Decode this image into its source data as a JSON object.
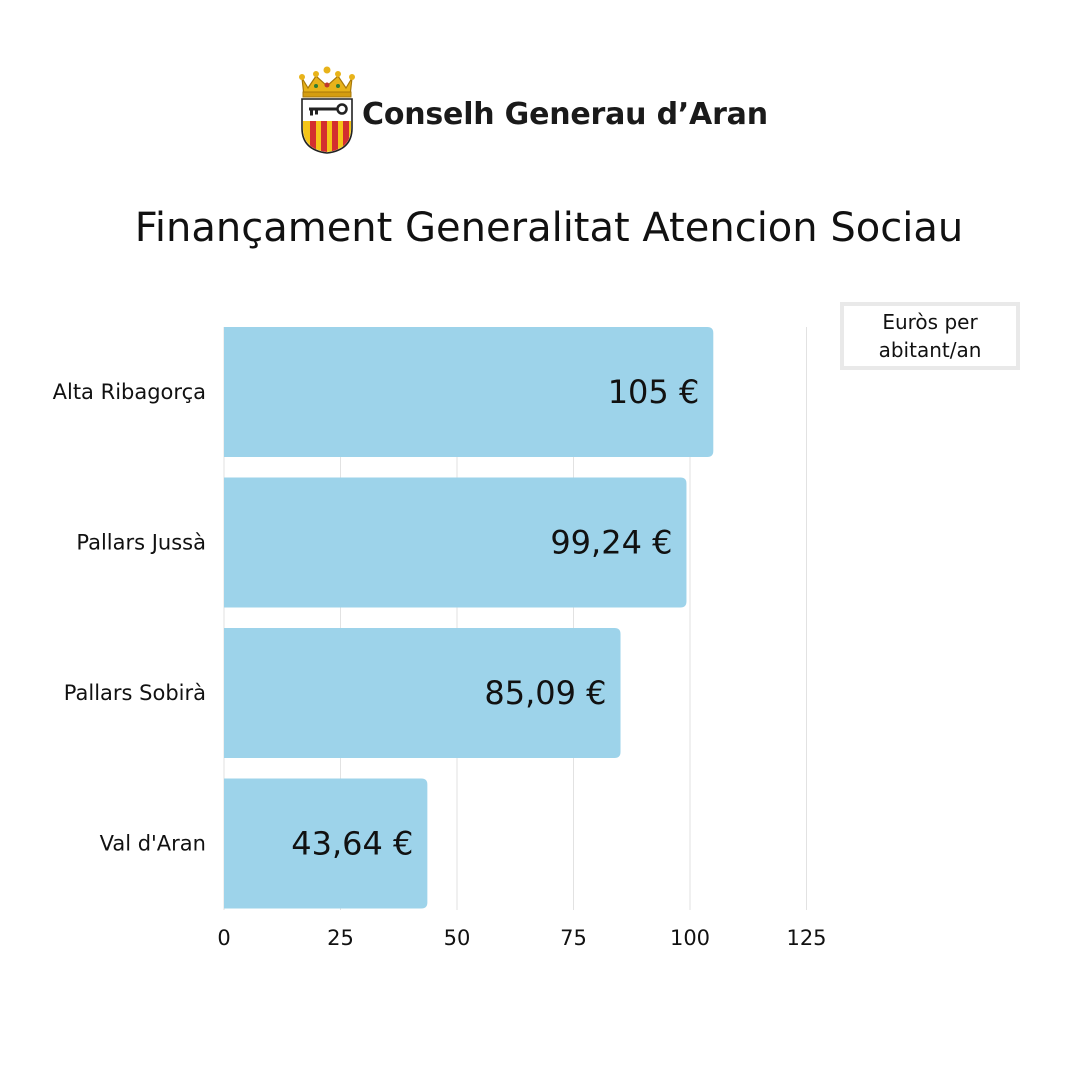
{
  "header": {
    "org_name": "Conselh Generau d’Aran",
    "logo_icon": "coat-of-arms-icon"
  },
  "legend": {
    "label": "Euròs per abitant/an"
  },
  "colors": {
    "bar": "#9dd3ea",
    "grid": "#e2e2e2",
    "text": "#111111"
  },
  "chart_data": {
    "type": "bar",
    "orientation": "horizontal",
    "title": "Finançament Generalitat Atencion Sociau",
    "categories": [
      "Alta Ribagorça",
      "Pallars Jussà",
      "Pallars Sobirà",
      "Val d'Aran"
    ],
    "values": [
      105,
      99.24,
      85.09,
      43.64
    ],
    "data_labels": [
      "105 €",
      "99,24 €",
      "85,09 €",
      "43,64 €"
    ],
    "xlim": [
      0,
      125
    ],
    "xticks": [
      0,
      25,
      50,
      75,
      100,
      125
    ],
    "grid": true,
    "legend": "top-right"
  }
}
